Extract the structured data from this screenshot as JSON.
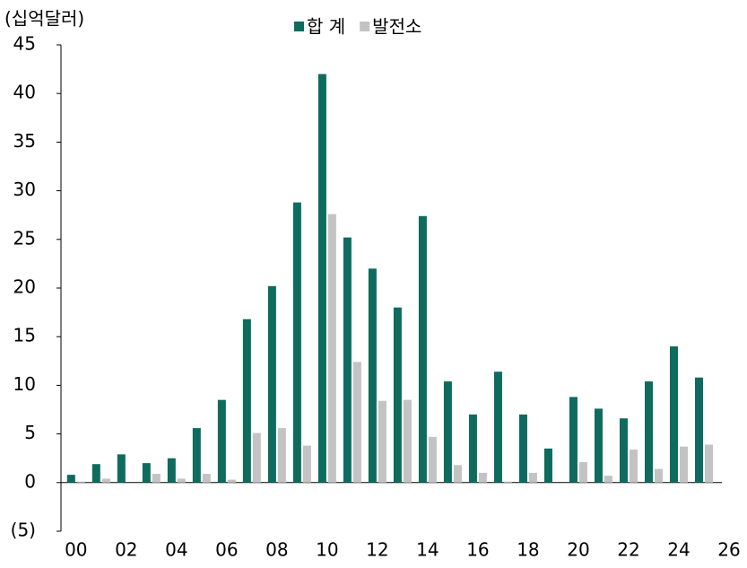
{
  "chart_data": {
    "type": "bar",
    "y_label": "(십억달러)",
    "x": [
      0,
      1,
      2,
      3,
      4,
      5,
      6,
      7,
      8,
      9,
      10,
      11,
      12,
      13,
      14,
      15,
      16,
      17,
      18,
      19,
      20,
      21,
      22,
      23,
      24,
      25
    ],
    "series": [
      {
        "name": "합 계",
        "color": "#0e6b5e",
        "values": [
          0.8,
          1.9,
          2.9,
          2.0,
          2.5,
          5.6,
          8.5,
          16.8,
          20.2,
          28.8,
          42.0,
          25.2,
          22.0,
          18.0,
          27.4,
          10.4,
          7.0,
          11.4,
          7.0,
          3.5,
          8.8,
          7.6,
          6.6,
          10.4,
          14.0,
          10.8
        ]
      },
      {
        "name": "발전소",
        "color": "#c3c3c3",
        "values": [
          0.1,
          0.4,
          0,
          0.9,
          0.4,
          0.9,
          0.3,
          5.1,
          5.6,
          3.8,
          27.6,
          12.4,
          8.4,
          8.5,
          4.7,
          1.8,
          1.0,
          0.1,
          1.0,
          0,
          2.1,
          0.7,
          3.4,
          1.4,
          3.7,
          3.9
        ]
      }
    ],
    "xlim": [
      -0.6,
      26.5
    ],
    "xticks": [
      {
        "value": 0,
        "label": "00"
      },
      {
        "value": 2,
        "label": "02"
      },
      {
        "value": 4,
        "label": "04"
      },
      {
        "value": 6,
        "label": "06"
      },
      {
        "value": 8,
        "label": "08"
      },
      10,
      12,
      14,
      16,
      18,
      20,
      22,
      24,
      26
    ],
    "ylim": [
      -5,
      45
    ],
    "yticks": [
      {
        "value": -5,
        "label": "(5)"
      },
      0,
      5,
      10,
      15,
      20,
      25,
      30,
      35,
      40,
      45
    ],
    "legend": "top"
  }
}
